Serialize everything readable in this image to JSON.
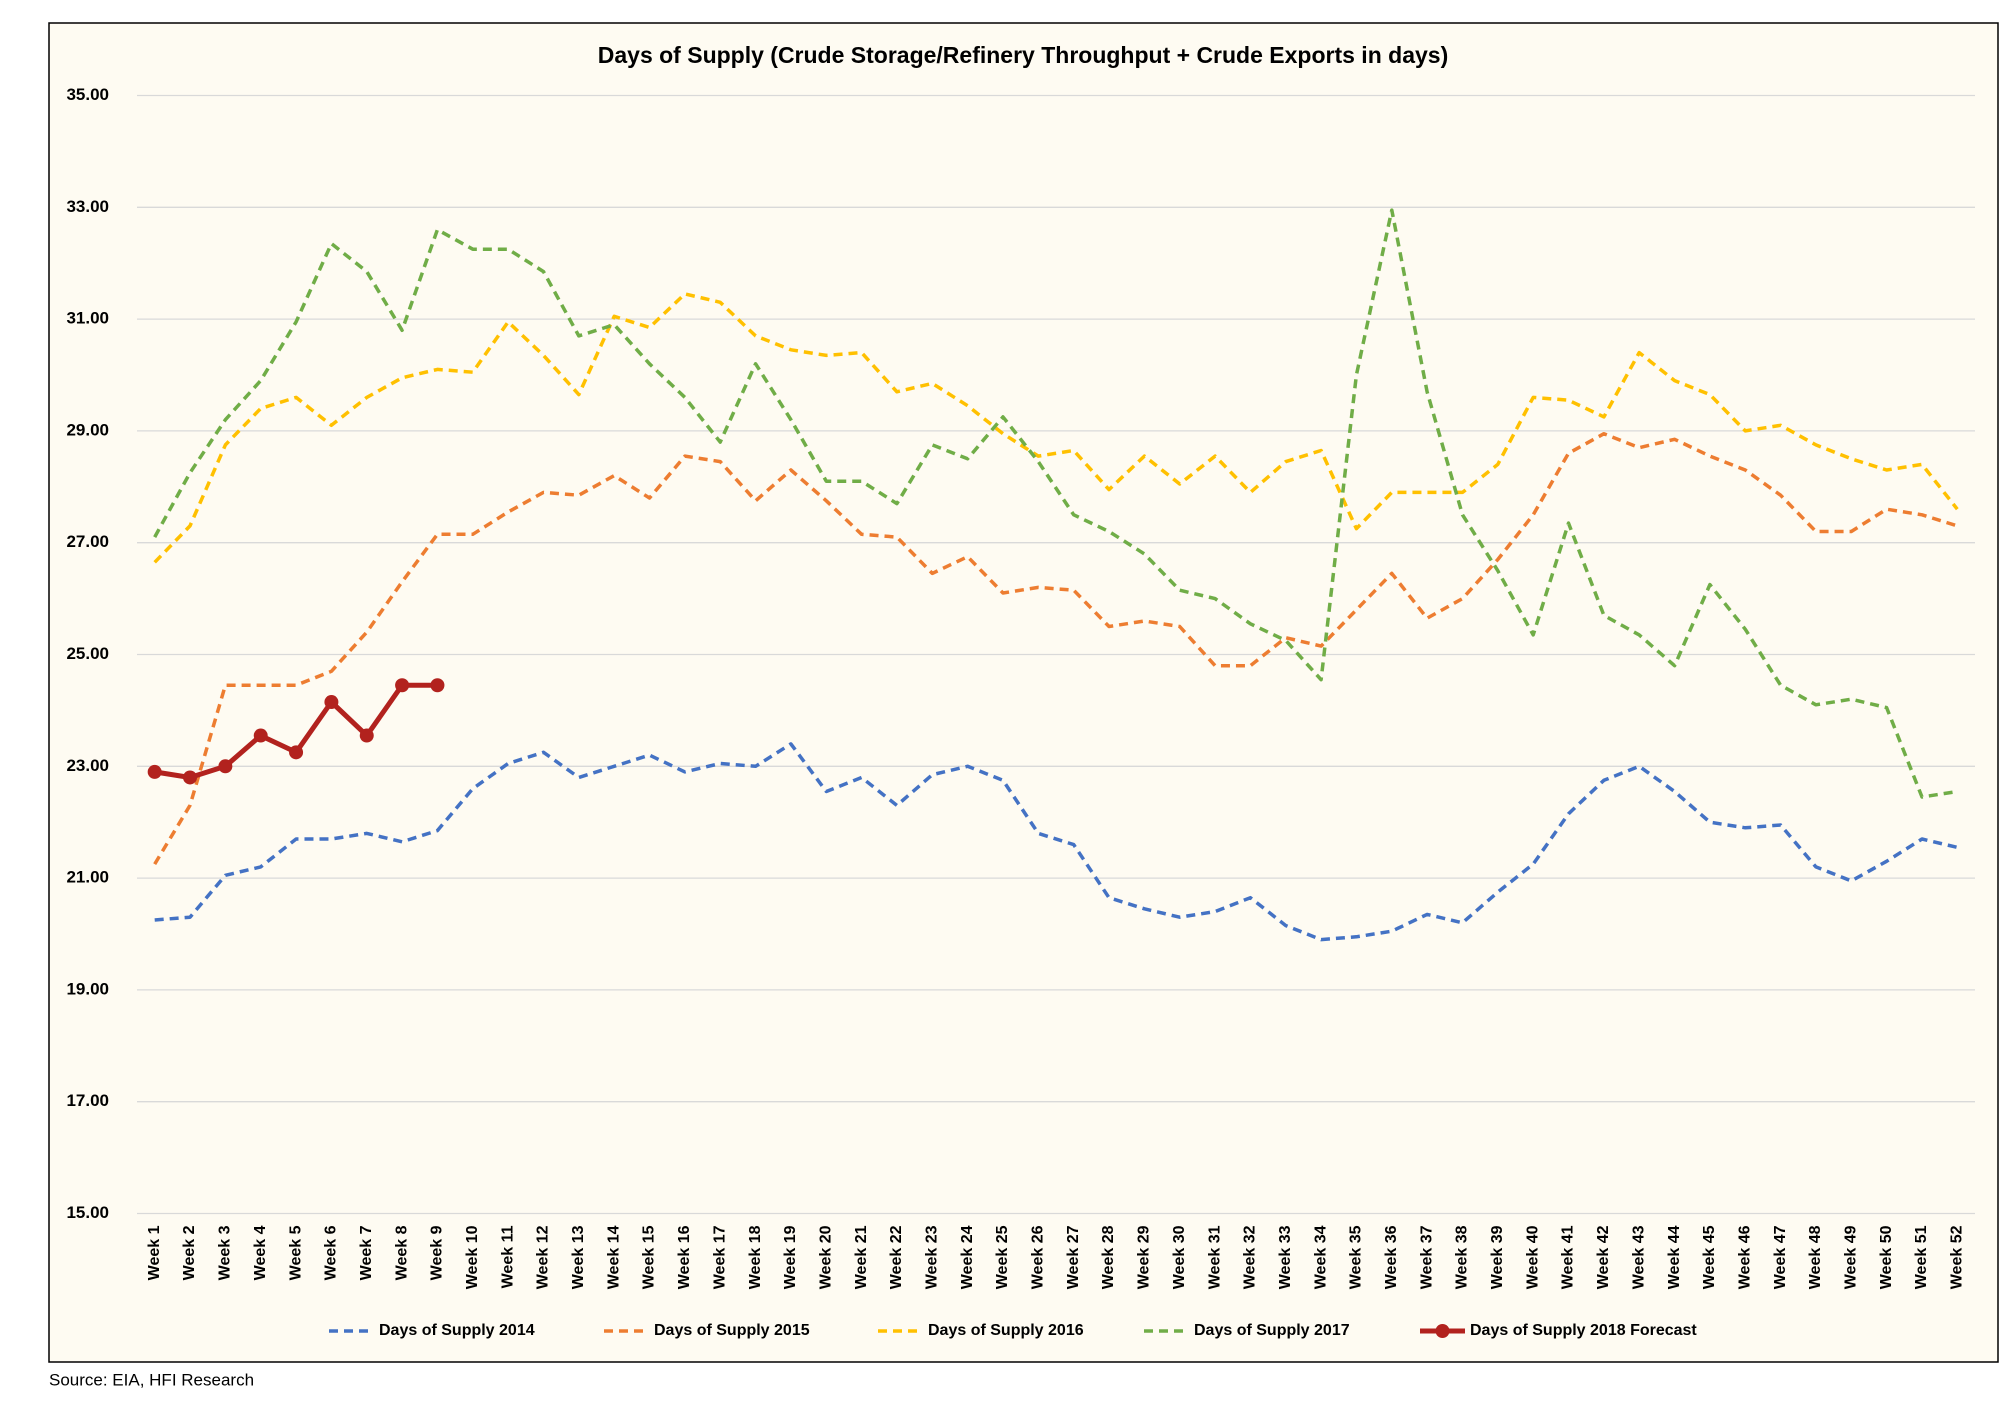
{
  "chart_data": {
    "type": "line",
    "title": "Days of Supply (Crude Storage/Refinery Throughput + Crude Exports in days)",
    "source": "Source: EIA, HFI Research",
    "categories": [
      "Week 1",
      "Week 2",
      "Week 3",
      "Week 4",
      "Week 5",
      "Week 6",
      "Week 7",
      "Week 8",
      "Week 9",
      "Week 10",
      "Week 11",
      "Week 12",
      "Week 13",
      "Week 14",
      "Week 15",
      "Week 16",
      "Week 17",
      "Week 18",
      "Week 19",
      "Week 20",
      "Week 21",
      "Week 22",
      "Week 23",
      "Week 24",
      "Week 25",
      "Week 26",
      "Week 27",
      "Week 28",
      "Week 29",
      "Week 30",
      "Week 31",
      "Week 32",
      "Week 33",
      "Week 34",
      "Week 35",
      "Week 36",
      "Week 37",
      "Week 38",
      "Week 39",
      "Week 40",
      "Week 41",
      "Week 42",
      "Week 43",
      "Week 44",
      "Week 45",
      "Week 46",
      "Week 47",
      "Week 48",
      "Week 49",
      "Week 50",
      "Week 51",
      "Week 52"
    ],
    "ylim": [
      15,
      35
    ],
    "yticks": [
      {
        "value": 15,
        "label": "15.00"
      },
      {
        "value": 17,
        "label": "17.00"
      },
      {
        "value": 19,
        "label": "19.00"
      },
      {
        "value": 21,
        "label": "21.00"
      },
      {
        "value": 23,
        "label": "23.00"
      },
      {
        "value": 25,
        "label": "25.00"
      },
      {
        "value": 27,
        "label": "27.00"
      },
      {
        "value": 29,
        "label": "29.00"
      },
      {
        "value": 31,
        "label": "31.00"
      },
      {
        "value": 33,
        "label": "33.00"
      },
      {
        "value": 35,
        "label": "35.00"
      }
    ],
    "grid": true,
    "legend": "bottom",
    "series": [
      {
        "name": "Days of Supply 2014",
        "color": "#4472c4",
        "style": "dashed",
        "values": [
          20.25,
          20.3,
          21.05,
          21.2,
          21.7,
          21.7,
          21.8,
          21.65,
          21.85,
          22.6,
          23.05,
          23.25,
          22.8,
          23.0,
          23.2,
          22.9,
          23.05,
          23.0,
          23.4,
          22.55,
          22.8,
          22.3,
          22.85,
          23.0,
          22.75,
          21.8,
          21.6,
          20.65,
          20.45,
          20.3,
          20.4,
          20.65,
          20.15,
          19.9,
          19.95,
          20.05,
          20.35,
          20.2,
          20.75,
          21.25,
          22.15,
          22.75,
          23.0,
          22.55,
          22.0,
          21.9,
          21.95,
          21.2,
          20.95,
          21.3,
          21.7,
          21.55
        ]
      },
      {
        "name": "Days of Supply 2015",
        "color": "#ed7d31",
        "style": "dashed",
        "values": [
          21.25,
          22.3,
          24.45,
          24.45,
          24.45,
          24.7,
          25.4,
          26.3,
          27.15,
          27.15,
          27.55,
          27.9,
          27.85,
          28.2,
          27.8,
          28.55,
          28.45,
          27.75,
          28.3,
          27.75,
          27.15,
          27.1,
          26.45,
          26.75,
          26.1,
          26.2,
          26.15,
          25.5,
          25.6,
          25.5,
          24.8,
          24.8,
          25.3,
          25.15,
          25.8,
          26.45,
          25.65,
          26.0,
          26.7,
          27.5,
          28.6,
          28.95,
          28.7,
          28.85,
          28.55,
          28.3,
          27.85,
          27.2,
          27.2,
          27.6,
          27.5,
          27.3
        ]
      },
      {
        "name": "Days of Supply 2016",
        "color": "#ffc000",
        "style": "dashed",
        "values": [
          26.65,
          27.3,
          28.75,
          29.4,
          29.6,
          29.1,
          29.6,
          29.95,
          30.1,
          30.05,
          30.95,
          30.35,
          29.65,
          31.05,
          30.85,
          31.45,
          31.3,
          30.7,
          30.45,
          30.35,
          30.4,
          29.7,
          29.85,
          29.45,
          28.95,
          28.55,
          28.65,
          27.95,
          28.55,
          28.05,
          28.55,
          27.9,
          28.45,
          28.65,
          27.25,
          27.9,
          27.9,
          27.9,
          28.4,
          29.6,
          29.55,
          29.25,
          30.4,
          29.9,
          29.65,
          29.0,
          29.1,
          28.75,
          28.5,
          28.3,
          28.4,
          27.6
        ]
      },
      {
        "name": "Days of Supply 2017",
        "color": "#70ad47",
        "style": "dashed",
        "values": [
          27.1,
          28.25,
          29.2,
          29.9,
          30.95,
          32.35,
          31.85,
          30.8,
          32.6,
          32.25,
          32.25,
          31.85,
          30.7,
          30.9,
          30.2,
          29.6,
          28.8,
          30.2,
          29.2,
          28.1,
          28.1,
          27.7,
          28.75,
          28.5,
          29.25,
          28.45,
          27.5,
          27.2,
          26.8,
          26.15,
          26.0,
          25.55,
          25.25,
          24.55,
          30.0,
          32.95,
          29.7,
          27.5,
          26.5,
          25.35,
          27.35,
          25.7,
          25.35,
          24.8,
          26.25,
          25.45,
          24.45,
          24.1,
          24.2,
          24.05,
          22.45,
          22.55
        ]
      },
      {
        "name": "Days of Supply 2018 Forecast",
        "color": "#b2221e",
        "style": "solid-markers",
        "values": [
          22.9,
          22.8,
          23.0,
          23.55,
          23.25,
          24.15,
          23.55,
          24.45,
          24.45,
          null,
          null,
          null,
          null,
          null,
          null,
          null,
          null,
          null,
          null,
          null,
          null,
          null,
          null,
          null,
          null,
          null,
          null,
          null,
          null,
          null,
          null,
          null,
          null,
          null,
          null,
          null,
          null,
          null,
          null,
          null,
          null,
          null,
          null,
          null,
          null,
          null,
          null,
          null,
          null,
          null,
          null,
          null
        ]
      }
    ]
  }
}
